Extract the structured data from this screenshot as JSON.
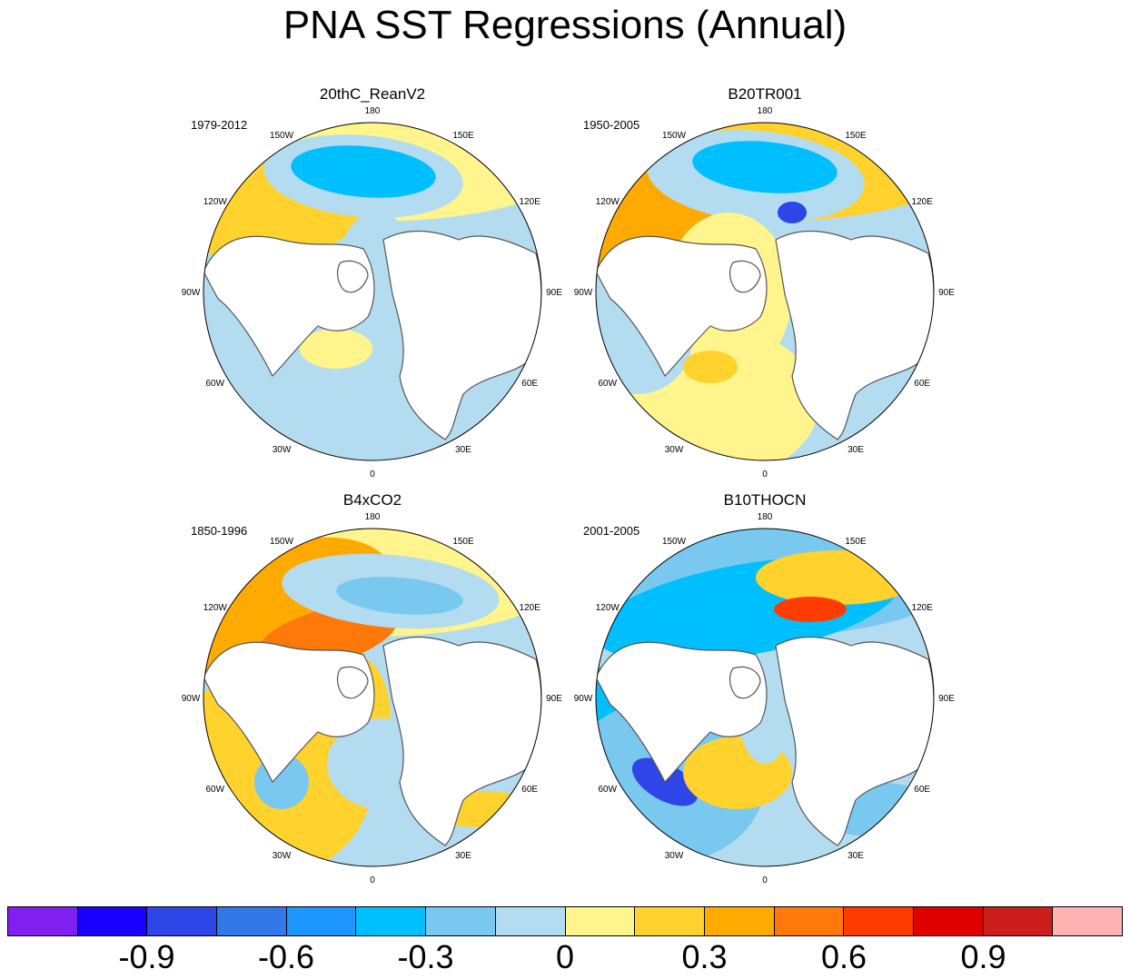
{
  "title": "PNA SST Regressions (Annual)",
  "panels": [
    {
      "name": "20thC_ReanV2",
      "period": "1979-2012"
    },
    {
      "name": "B20TR001",
      "period": "1950-2005"
    },
    {
      "name": "B4xCO2",
      "period": "1850-1996"
    },
    {
      "name": "B10THOCN",
      "period": "2001-2005"
    }
  ],
  "longitude_labels": [
    "180",
    "150E",
    "120E",
    "90E",
    "60E",
    "30E",
    "0",
    "30W",
    "60W",
    "90W",
    "120W",
    "150W"
  ],
  "colorbar": {
    "colors": [
      "#8020f0",
      "#1a00ff",
      "#2e45e8",
      "#3278e8",
      "#1e96ff",
      "#00bfff",
      "#78c8f0",
      "#b4dcf0",
      "#fff58c",
      "#ffd22d",
      "#ffaa00",
      "#ff780a",
      "#ff3c00",
      "#e10000",
      "#cd1e1e",
      "#ffb4b4"
    ],
    "tick_labels": [
      "-0.9",
      "-0.6",
      "-0.3",
      "0",
      "0.3",
      "0.6",
      "0.9"
    ],
    "tick_values": [
      -0.9,
      -0.6,
      -0.3,
      0,
      0.3,
      0.6,
      0.9
    ]
  }
}
